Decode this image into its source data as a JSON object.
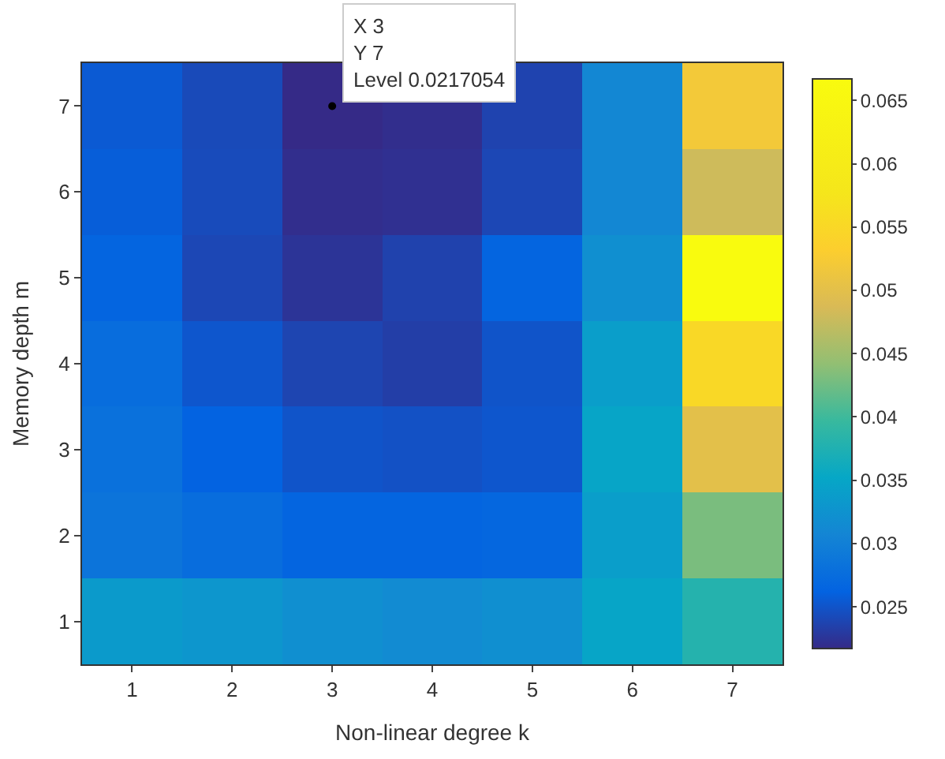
{
  "chart_data": {
    "type": "heatmap",
    "xlabel": "Non-linear degree k",
    "ylabel": "Memory depth m",
    "categories": [
      "1",
      "2",
      "3",
      "4",
      "5",
      "6",
      "7"
    ],
    "y_categories": [
      "7",
      "6",
      "5",
      "4",
      "3",
      "2",
      "1"
    ],
    "cells": [
      [
        0.0255,
        0.0242,
        0.0217054,
        0.022,
        0.0237,
        0.031,
        0.052
      ],
      [
        0.0258,
        0.0243,
        0.022,
        0.0222,
        0.024,
        0.031,
        0.048
      ],
      [
        0.0265,
        0.024,
        0.0225,
        0.0236,
        0.0265,
        0.032,
        0.0665
      ],
      [
        0.0275,
        0.0252,
        0.0238,
        0.0233,
        0.025,
        0.034,
        0.055
      ],
      [
        0.028,
        0.0262,
        0.025,
        0.0248,
        0.0252,
        0.035,
        0.05
      ],
      [
        0.0285,
        0.0275,
        0.0265,
        0.0265,
        0.0268,
        0.034,
        0.043
      ],
      [
        0.0335,
        0.033,
        0.032,
        0.0315,
        0.032,
        0.035,
        0.038
      ]
    ],
    "clim": [
      0.0217054,
      0.0667
    ],
    "cticks": [
      0.025,
      0.03,
      0.035,
      0.04,
      0.045,
      0.05,
      0.055,
      0.06,
      0.065
    ],
    "annotations": [
      {
        "text": "X 3\nY 7\nLevel 0.0217054",
        "x": "3",
        "y": "7"
      }
    ]
  }
}
